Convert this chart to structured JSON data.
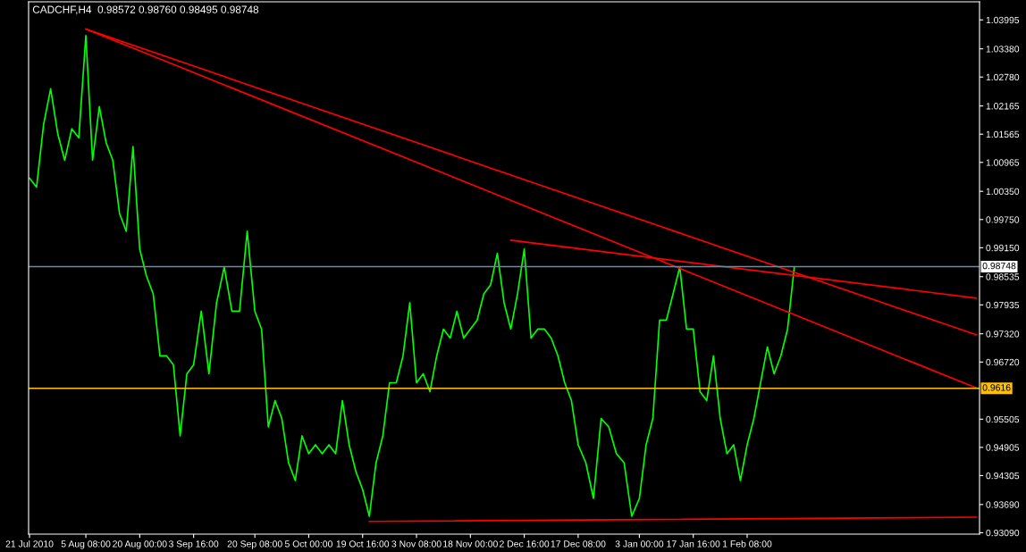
{
  "chart_data": {
    "type": "line",
    "title": "CADCHF,H4  0.98572 0.98760 0.98495 0.98748",
    "x": [
      "2010-07-21T00:00",
      "2010-07-22T22:00",
      "2010-07-24T20:00",
      "2010-07-26T18:00",
      "2010-07-28T16:00",
      "2010-07-30T14:00",
      "2010-08-01T12:00",
      "2010-08-03T10:00",
      "2010-08-05T08:00",
      "2010-08-07T04:00",
      "2010-08-09T00:00",
      "2010-08-10T20:00",
      "2010-08-12T16:00",
      "2010-08-14T12:00",
      "2010-08-16T08:00",
      "2010-08-18T04:00",
      "2010-08-20T00:00",
      "2010-08-21T20:00",
      "2010-08-23T16:00",
      "2010-08-25T12:00",
      "2010-08-27T08:00",
      "2010-08-29T04:00",
      "2010-08-31T00:00",
      "2010-09-01T20:00",
      "2010-09-03T16:00",
      "2010-09-05T18:00",
      "2010-09-07T20:00",
      "2010-09-09T22:00",
      "2010-09-12T00:00",
      "2010-09-14T02:00",
      "2010-09-16T04:00",
      "2010-09-18T06:00",
      "2010-09-20T08:00",
      "2010-09-22T04:00",
      "2010-09-24T00:00",
      "2010-09-25T20:00",
      "2010-09-27T16:00",
      "2010-09-29T12:00",
      "2010-10-01T08:00",
      "2010-10-03T04:00",
      "2010-10-05T00:00",
      "2010-10-06T20:00",
      "2010-10-08T16:00",
      "2010-10-10T12:00",
      "2010-10-12T08:00",
      "2010-10-14T04:00",
      "2010-10-16T00:00",
      "2010-10-17T20:00",
      "2010-10-19T16:00",
      "2010-10-21T12:00",
      "2010-10-23T08:00",
      "2010-10-25T04:00",
      "2010-10-27T00:00",
      "2010-10-28T20:00",
      "2010-10-30T16:00",
      "2010-11-01T12:00",
      "2010-11-03T08:00",
      "2010-11-05T04:00",
      "2010-11-07T00:00",
      "2010-11-08T20:00",
      "2010-11-10T16:00",
      "2010-11-12T12:00",
      "2010-11-14T08:00",
      "2010-11-16T04:00",
      "2010-11-18T00:00",
      "2010-11-19T20:00",
      "2010-11-21T16:00",
      "2010-11-23T12:00",
      "2010-11-25T08:00",
      "2010-11-27T04:00",
      "2010-11-29T00:00",
      "2010-11-30T20:00",
      "2010-12-02T16:00",
      "2010-12-04T12:00",
      "2010-12-06T08:00",
      "2010-12-08T04:00",
      "2010-12-10T00:00",
      "2010-12-11T20:00",
      "2010-12-13T16:00",
      "2010-12-15T12:00",
      "2010-12-17T08:00",
      "2010-12-19T10:00",
      "2010-12-21T12:00",
      "2010-12-23T14:00",
      "2010-12-25T16:00",
      "2010-12-27T18:00",
      "2010-12-29T20:00",
      "2010-12-31T22:00",
      "2011-01-03T00:00",
      "2011-01-04T20:00",
      "2011-01-06T16:00",
      "2011-01-08T12:00",
      "2011-01-10T08:00",
      "2011-01-12T04:00",
      "2011-01-14T00:00",
      "2011-01-15T20:00",
      "2011-01-17T16:00",
      "2011-01-19T12:00",
      "2011-01-21T08:00",
      "2011-01-23T04:00",
      "2011-01-25T00:00",
      "2011-01-26T20:00",
      "2011-01-28T16:00",
      "2011-01-30T12:00",
      "2011-02-01T08:00",
      "2011-02-03T04:00",
      "2011-02-05T00:00",
      "2011-02-06T20:00",
      "2011-02-08T16:00",
      "2011-02-10T12:00",
      "2011-02-12T08:00",
      "2011-02-14T04:00"
    ],
    "series": [
      {
        "color": "#00ff00",
        "values": [
          1.0063,
          1.0044,
          1.0177,
          1.0253,
          1.0158,
          1.0101,
          1.0168,
          1.0149,
          1.0366,
          1.0101,
          1.0215,
          1.0139,
          1.0101,
          0.9988,
          0.995,
          1.013,
          0.9912,
          0.9855,
          0.9817,
          0.9685,
          0.9685,
          0.9666,
          0.9515,
          0.9647,
          0.9666,
          0.978,
          0.9647,
          0.9798,
          0.9874,
          0.978,
          0.978,
          0.995,
          0.978,
          0.9742,
          0.9534,
          0.959,
          0.9552,
          0.9458,
          0.942,
          0.9515,
          0.9477,
          0.9496,
          0.9477,
          0.9496,
          0.9477,
          0.959,
          0.9496,
          0.9439,
          0.9401,
          0.9344,
          0.9458,
          0.9515,
          0.9628,
          0.9628,
          0.9685,
          0.9798,
          0.9628,
          0.9647,
          0.9609,
          0.9685,
          0.9742,
          0.9723,
          0.978,
          0.9723,
          0.9742,
          0.9761,
          0.9817,
          0.9836,
          0.9903,
          0.9798,
          0.9742,
          0.9817,
          0.9912,
          0.9723,
          0.9742,
          0.9742,
          0.9723,
          0.9685,
          0.9628,
          0.959,
          0.9496,
          0.9458,
          0.9382,
          0.9552,
          0.9534,
          0.9477,
          0.9458,
          0.9344,
          0.9382,
          0.9496,
          0.9552,
          0.9761,
          0.9761,
          0.9817,
          0.9874,
          0.9742,
          0.9742,
          0.9609,
          0.959,
          0.9685,
          0.9552,
          0.9477,
          0.9496,
          0.942,
          0.9496,
          0.9552,
          0.9628,
          0.9704,
          0.9647,
          0.9685,
          0.9742,
          0.9874
        ]
      },
      {
        "color": "#ff0000",
        "x": [
          "2010-08-05T08:00",
          "2011-04-04T16:00"
        ],
        "values": [
          1.038,
          0.973
        ]
      },
      {
        "color": "#ff0000",
        "x": [
          "2010-08-05T08:00",
          "2011-04-04T16:00"
        ],
        "values": [
          1.038,
          0.9617
        ]
      },
      {
        "color": "#ff0000",
        "x": [
          "2010-11-29T00:00",
          "2011-04-04T16:00"
        ],
        "values": [
          0.9931,
          0.9808
        ]
      },
      {
        "color": "#ff0000",
        "x": [
          "2010-10-21T12:00",
          "2011-04-04T16:00"
        ],
        "values": [
          0.9333,
          0.9342
        ]
      }
    ],
    "xlim": [
      "2010-07-20T18:00",
      "2011-04-05T14:00"
    ],
    "xticks": [
      {
        "value": "2010-07-21T00:00",
        "label": "21 Jul 2010"
      },
      {
        "value": "2010-08-05T08:00",
        "label": "5 Aug 08:00"
      },
      {
        "value": "2010-08-20T00:00",
        "label": "20 Aug 00:00"
      },
      {
        "value": "2010-09-03T16:00",
        "label": "3 Sep 16:00"
      },
      {
        "value": "2010-09-20T08:00",
        "label": "20 Sep 08:00"
      },
      {
        "value": "2010-10-05T00:00",
        "label": "5 Oct 00:00"
      },
      {
        "value": "2010-10-19T16:00",
        "label": "19 Oct 16:00"
      },
      {
        "value": "2010-11-03T08:00",
        "label": "3 Nov 08:00"
      },
      {
        "value": "2010-11-18T00:00",
        "label": "18 Nov 00:00"
      },
      {
        "value": "2010-12-02T16:00",
        "label": "2 Dec 16:00"
      },
      {
        "value": "2010-12-17T08:00",
        "label": "17 Dec 08:00"
      },
      {
        "value": "2011-01-03T00:00",
        "label": "3 Jan 00:00"
      },
      {
        "value": "2011-01-17T16:00",
        "label": "17 Jan 16:00"
      },
      {
        "value": "2011-02-01T08:00",
        "label": "1 Feb 08:00"
      }
    ],
    "ylim": [
      0.9306,
      1.0438
    ],
    "yticks": [
      {
        "value": 1.03995,
        "label": "1.03995"
      },
      {
        "value": 1.0338,
        "label": "1.03380"
      },
      {
        "value": 1.0278,
        "label": "1.02780"
      },
      {
        "value": 1.02165,
        "label": "1.02165"
      },
      {
        "value": 1.01565,
        "label": "1.01565"
      },
      {
        "value": 1.00965,
        "label": "1.00965"
      },
      {
        "value": 1.0035,
        "label": "1.00350"
      },
      {
        "value": 0.9975,
        "label": "0.99750"
      },
      {
        "value": 0.9915,
        "label": "0.99150"
      },
      {
        "value": 0.98535,
        "label": "0.98535"
      },
      {
        "value": 0.97935,
        "label": "0.97935"
      },
      {
        "value": 0.9732,
        "label": "0.97320"
      },
      {
        "value": 0.9672,
        "label": "0.96720"
      },
      {
        "value": 0.95505,
        "label": "0.95505"
      },
      {
        "value": 0.94905,
        "label": "0.94905"
      },
      {
        "value": 0.94305,
        "label": "0.94305"
      },
      {
        "value": 0.9369,
        "label": "0.93690"
      },
      {
        "value": 0.9309,
        "label": "0.93090"
      }
    ],
    "ref_lines": [
      {
        "axis": "y",
        "value": 0.98748,
        "label": "0.98748",
        "color": "#778899"
      },
      {
        "axis": "y",
        "value": 0.9616,
        "label": "0.9616",
        "color": "#ffc000"
      }
    ],
    "grid": false,
    "legend": false
  }
}
